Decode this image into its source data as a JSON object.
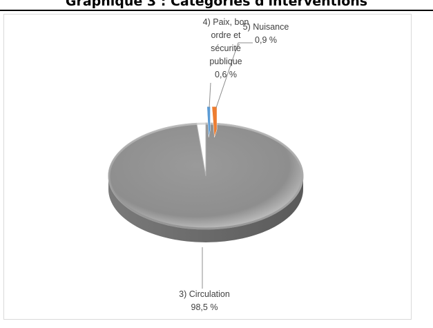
{
  "page": {
    "title": "Graphique 3 : Catégories d'interventions"
  },
  "chart_data": {
    "type": "pie",
    "title": "",
    "slices": [
      {
        "label": "3) Circulation",
        "value": 98.5,
        "value_text": "98,5 %",
        "color": "#A6A6A6"
      },
      {
        "label": "4) Paix, bon ordre et sécurité publique",
        "value": 0.6,
        "value_text": "0,6 %",
        "color": "#5B9BD5"
      },
      {
        "label": "5) Nuisance",
        "value": 0.9,
        "value_text": "0,9 %",
        "color": "#ED7D31"
      }
    ],
    "legend": "none",
    "style": "3d-exploded"
  }
}
